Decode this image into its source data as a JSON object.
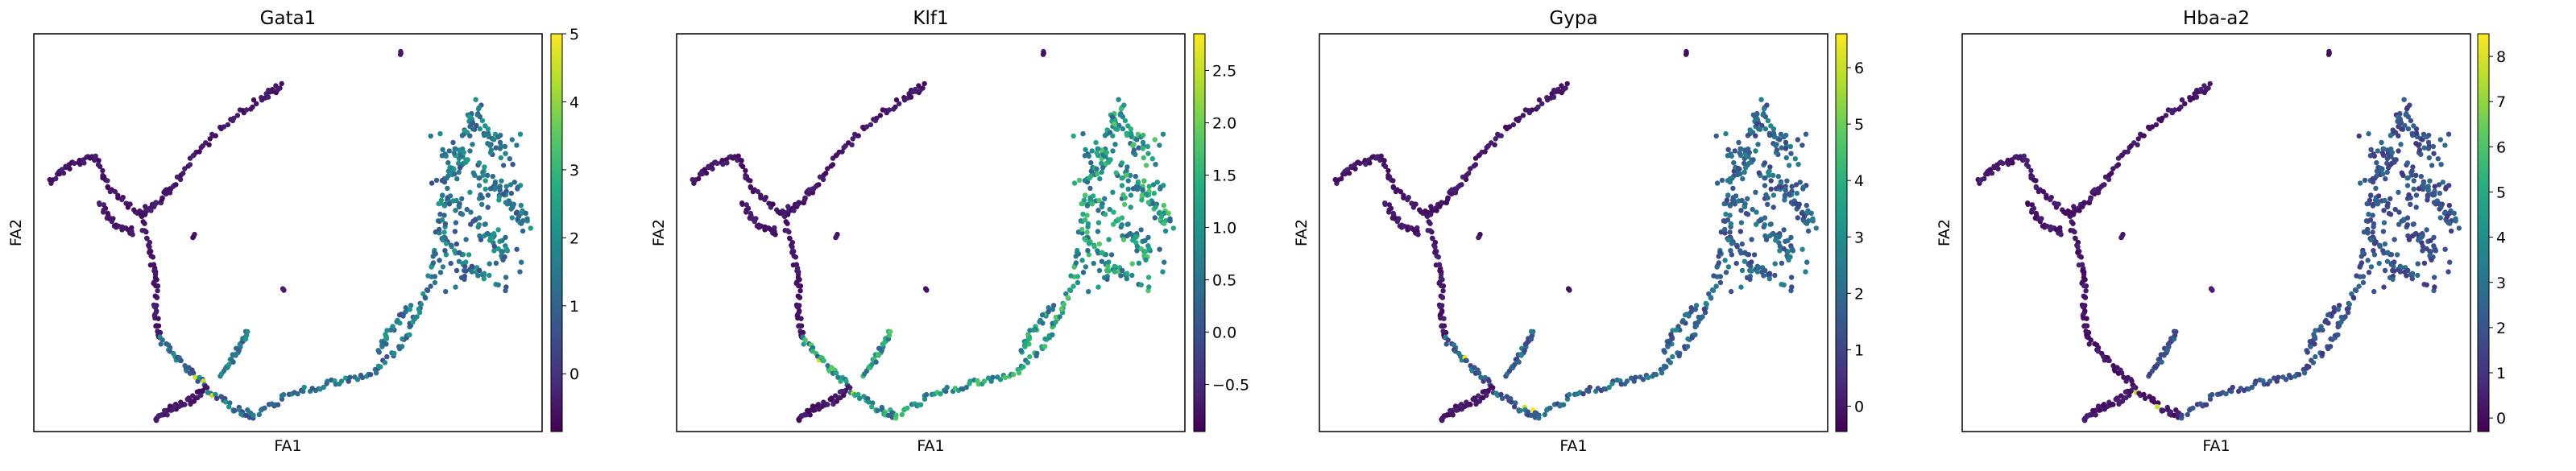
{
  "figure": {
    "xlabel": "FA1",
    "ylabel": "FA2"
  },
  "chart_data": [
    {
      "type": "scatter",
      "title": "Gata1",
      "xlabel": "FA1",
      "ylabel": "FA2",
      "colorbar": {
        "min": -0.85,
        "max": 5.0,
        "ticks": [
          0,
          1,
          2,
          3,
          4,
          5
        ],
        "tick_labels": [
          "0",
          "1",
          "2",
          "3",
          "4",
          "5"
        ]
      },
      "color_level": 0.45
    },
    {
      "type": "scatter",
      "title": "Klf1",
      "xlabel": "FA1",
      "ylabel": "FA2",
      "colorbar": {
        "min": -0.95,
        "max": 2.85,
        "ticks": [
          -0.5,
          0.0,
          0.5,
          1.0,
          1.5,
          2.0,
          2.5
        ],
        "tick_labels": [
          "−0.5",
          "0.0",
          "0.5",
          "1.0",
          "1.5",
          "2.0",
          "2.5"
        ]
      },
      "color_level": 0.62
    },
    {
      "type": "scatter",
      "title": "Gypa",
      "xlabel": "FA1",
      "ylabel": "FA2",
      "colorbar": {
        "min": -0.45,
        "max": 6.6,
        "ticks": [
          0,
          1,
          2,
          3,
          4,
          5,
          6
        ],
        "tick_labels": [
          "0",
          "1",
          "2",
          "3",
          "4",
          "5",
          "6"
        ]
      },
      "color_level": 0.38
    },
    {
      "type": "scatter",
      "title": "Hba-a2",
      "xlabel": "FA1",
      "ylabel": "FA2",
      "colorbar": {
        "min": -0.3,
        "max": 8.5,
        "ticks": [
          0,
          1,
          2,
          3,
          4,
          5,
          6,
          7,
          8
        ],
        "tick_labels": [
          "0",
          "1",
          "2",
          "3",
          "4",
          "5",
          "6",
          "7",
          "8"
        ]
      },
      "color_level": 0.3
    }
  ]
}
